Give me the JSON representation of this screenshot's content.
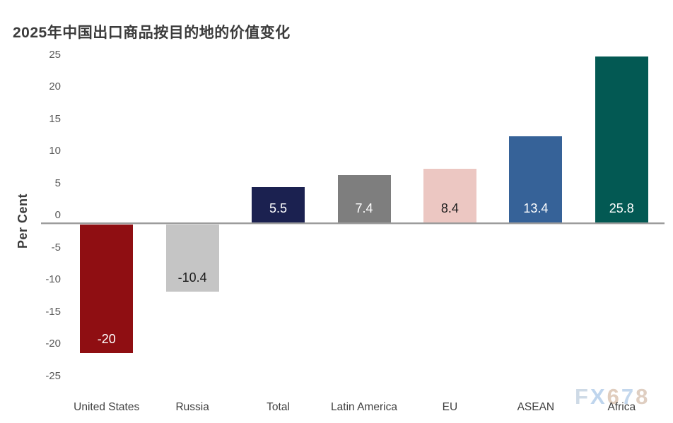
{
  "title": "2025年中国出口商品按目的地的价值变化",
  "y_axis_label": "Per Cent",
  "watermark": {
    "text": "FX678",
    "letter_colors": [
      "#c9d6e4",
      "#b9d1ec",
      "#ddc8b7",
      "#bdd3ec",
      "#dcc9bb"
    ]
  },
  "chart_data": {
    "type": "bar",
    "title": "2025年中国出口商品按目的地的价值变化",
    "ylabel": "Per Cent",
    "xlabel": "",
    "categories": [
      "United States",
      "Russia",
      "Total",
      "Latin America",
      "EU",
      "ASEAN",
      "Africa"
    ],
    "values": [
      -20,
      -10.4,
      5.5,
      7.4,
      8.4,
      13.4,
      25.8
    ],
    "value_labels": [
      "-20",
      "-10.4",
      "5.5",
      "7.4",
      "8.4",
      "13.4",
      "25.8"
    ],
    "bar_colors": [
      "#8f0e12",
      "#c5c5c5",
      "#1b2150",
      "#7e7e7e",
      "#ecc7c2",
      "#366298",
      "#035953"
    ],
    "value_label_colors": [
      "#ffffff",
      "#1e1e1e",
      "#ffffff",
      "#ffffff",
      "#1e1e1e",
      "#ffffff",
      "#ffffff"
    ],
    "ylim": [
      -25,
      25
    ],
    "yticks": [
      25,
      20,
      15,
      10,
      5,
      0,
      -5,
      -10,
      -15,
      -20,
      -25
    ],
    "grid": false,
    "legend": null,
    "axis_color": "#9c9c9c",
    "tick_label_color": "#595959"
  }
}
